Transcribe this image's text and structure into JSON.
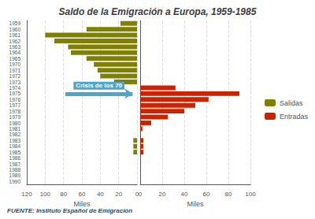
{
  "chart_data": [
    {
      "type": "bar",
      "orientation": "horizontal",
      "title": "Saldo de la Emigración a Europa, 1959-1985",
      "source": "FUENTE: Instituto Español de Emigración",
      "categories": [
        "1959",
        "1960",
        "1961",
        "1962",
        "1963",
        "1964",
        "1965",
        "1970",
        "1971",
        "1972",
        "1973",
        "1974",
        "1975",
        "1976",
        "1977",
        "1978",
        "1979",
        "1980",
        "1981",
        "1982",
        "1983",
        "1984",
        "1985",
        "1986",
        "1987",
        "1988",
        "1989",
        "1990"
      ],
      "series": [
        {
          "name": "Salidas",
          "color": "#808000",
          "values": [
            18,
            55,
            100,
            90,
            75,
            72,
            55,
            47,
            43,
            40,
            25,
            0,
            0,
            0,
            0,
            0,
            0,
            0,
            0,
            0,
            4,
            4,
            4,
            0,
            0,
            0,
            0,
            0
          ]
        }
      ],
      "xlabel": "Miles",
      "xlim": [
        0,
        120
      ],
      "xticks": [
        0,
        20,
        40,
        60,
        80,
        100,
        120
      ],
      "grid": true,
      "annotations": [
        {
          "text": "Crisis de los 70",
          "category": "1975",
          "color": "#4da6c8"
        }
      ]
    },
    {
      "type": "bar",
      "orientation": "horizontal",
      "categories": [
        "1959",
        "1960",
        "1961",
        "1962",
        "1963",
        "1964",
        "1965",
        "1970",
        "1971",
        "1972",
        "1973",
        "1974",
        "1975",
        "1976",
        "1977",
        "1978",
        "1979",
        "1980",
        "1981",
        "1982",
        "1983",
        "1984",
        "1985",
        "1986",
        "1987",
        "1988",
        "1989",
        "1990"
      ],
      "series": [
        {
          "name": "Entradas",
          "color": "#cc2200",
          "values": [
            0,
            0,
            0,
            0,
            0,
            0,
            0,
            0,
            0,
            0,
            0,
            32,
            90,
            62,
            50,
            40,
            25,
            10,
            2,
            0,
            3,
            3,
            3,
            0,
            0,
            0,
            0,
            0
          ]
        }
      ],
      "xlabel": "Miles",
      "xlim": [
        0,
        100
      ],
      "xticks": [
        0,
        20,
        40,
        60,
        80,
        100
      ],
      "grid": true,
      "tick_labels": "x",
      "legend": "right"
    }
  ]
}
